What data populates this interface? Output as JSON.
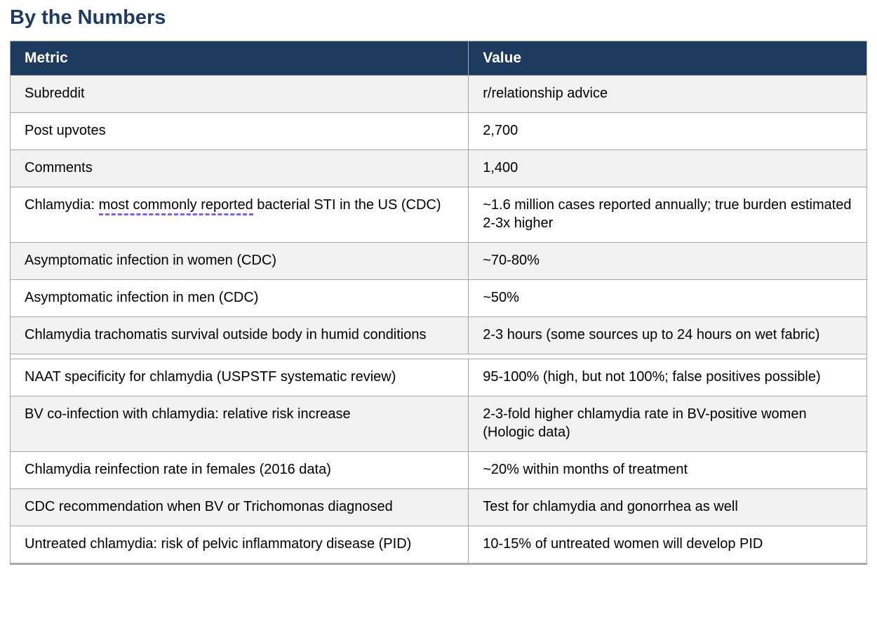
{
  "title": "By the Numbers",
  "colors": {
    "navy": "#1f3a5f",
    "header_text": "#ffffff",
    "row_shaded_bg": "#f2f2f2",
    "row_plain_bg": "#ffffff",
    "border": "#a6a6a6",
    "suggestion_underline": "#7468df",
    "body_text": "#000000"
  },
  "table": {
    "columns": [
      "Metric",
      "Value"
    ],
    "rows": [
      {
        "metric": "Subreddit",
        "value": "r/relationship advice",
        "shaded": true
      },
      {
        "metric": "Post upvotes",
        "value": "2,700",
        "shaded": false
      },
      {
        "metric": "Comments",
        "value": "1,400",
        "shaded": true
      },
      {
        "metric": "Chlamydia: most commonly reported bacterial STI in the US (CDC)",
        "metric_segments": [
          {
            "text": "Chlamydia: "
          },
          {
            "text": "most commonly reported",
            "suggestion": true
          },
          {
            "text": " bacterial STI in the US (CDC)"
          }
        ],
        "value": "~1.6 million cases reported annually; true burden estimated 2-3x higher",
        "shaded": false
      },
      {
        "metric": "Asymptomatic infection in women (CDC)",
        "value": "~70-80%",
        "shaded": true
      },
      {
        "metric": "Asymptomatic infection in men (CDC)",
        "value": "~50%",
        "shaded": false
      },
      {
        "metric": "Chlamydia trachomatis survival outside body in humid conditions",
        "value": "2-3 hours (some sources up to 24 hours on wet fabric)",
        "shaded": true
      },
      {
        "spacer": true
      },
      {
        "metric": "NAAT specificity for chlamydia (USPSTF systematic review)",
        "value": "95-100% (high, but not 100%; false positives possible)",
        "shaded": false
      },
      {
        "metric": "BV co-infection with chlamydia: relative risk increase",
        "value": "2-3-fold higher chlamydia rate in BV-positive women (Hologic data)",
        "shaded": true
      },
      {
        "metric": "Chlamydia reinfection rate in females (2016 data)",
        "value": "~20% within months of treatment",
        "shaded": false
      },
      {
        "metric": "CDC recommendation when BV or Trichomonas diagnosed",
        "value": "Test for chlamydia and gonorrhea as well",
        "shaded": true
      },
      {
        "metric": "Untreated chlamydia: risk of pelvic inflammatory disease (PID)",
        "value": "10-15% of untreated women will develop PID",
        "shaded": false
      }
    ]
  }
}
